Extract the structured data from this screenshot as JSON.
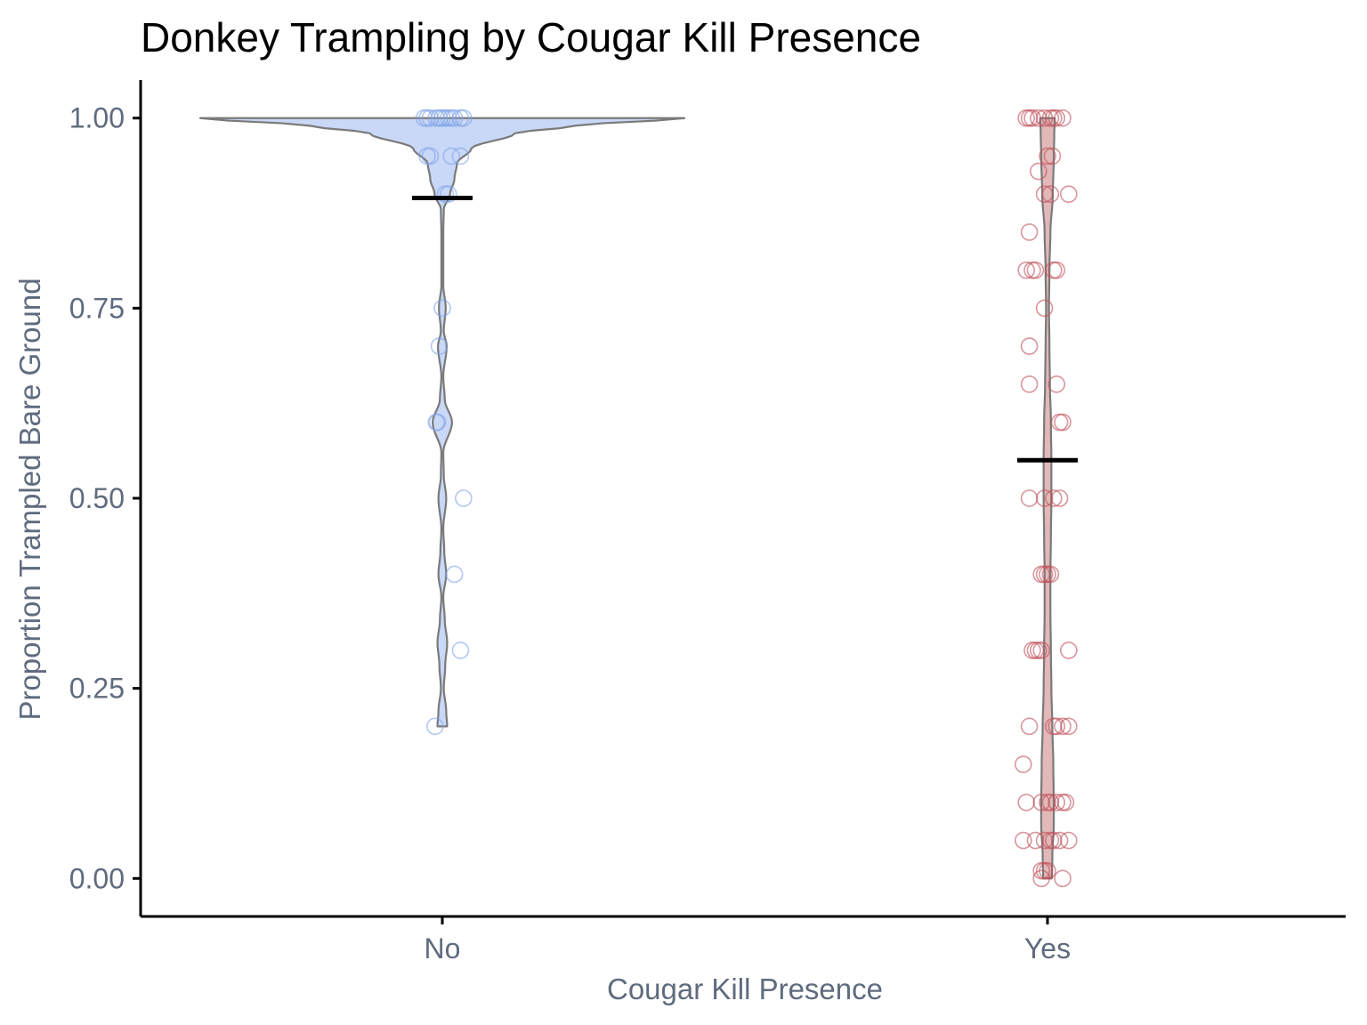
{
  "chart_data": {
    "type": "violin",
    "title": "Donkey Trampling by Cougar Kill Presence",
    "xlabel": "Cougar Kill Presence",
    "ylabel": "Proportion Trampled Bare Ground",
    "ylim": [
      -0.05,
      1.05
    ],
    "y_ticks": [
      0.0,
      0.25,
      0.5,
      0.75,
      1.0
    ],
    "y_tick_labels": [
      "0.00",
      "0.25",
      "0.50",
      "0.75",
      "1.00"
    ],
    "categories": [
      "No",
      "Yes"
    ],
    "grid": false,
    "legend": "none",
    "groups": [
      {
        "category": "No",
        "fill": "#cad8f7",
        "point_color": "#7fa3ea",
        "violin_color": "#7a7a7a",
        "mean": 0.895,
        "violin_range": [
          0.2,
          1.0
        ],
        "violin_halfwidth_fraction": [
          [
            0.2,
            0.02
          ],
          [
            0.22,
            0.016
          ],
          [
            0.25,
            0.006
          ],
          [
            0.28,
            0.012
          ],
          [
            0.31,
            0.02
          ],
          [
            0.34,
            0.01
          ],
          [
            0.37,
            0.004
          ],
          [
            0.4,
            0.016
          ],
          [
            0.43,
            0.008
          ],
          [
            0.46,
            0.004
          ],
          [
            0.5,
            0.016
          ],
          [
            0.53,
            0.006
          ],
          [
            0.56,
            0.004
          ],
          [
            0.6,
            0.04
          ],
          [
            0.63,
            0.01
          ],
          [
            0.66,
            0.004
          ],
          [
            0.7,
            0.018
          ],
          [
            0.72,
            0.006
          ],
          [
            0.75,
            0.014
          ],
          [
            0.78,
            0.004
          ],
          [
            0.8,
            0.004
          ],
          [
            0.85,
            0.004
          ],
          [
            0.88,
            0.006
          ],
          [
            0.9,
            0.032
          ],
          [
            0.92,
            0.05
          ],
          [
            0.94,
            0.06
          ],
          [
            0.96,
            0.12
          ],
          [
            0.98,
            0.3
          ],
          [
            0.99,
            0.55
          ],
          [
            1.0,
            1.0
          ]
        ],
        "points": [
          [
            -0.03,
            1.0
          ],
          [
            -0.02,
            1.0
          ],
          [
            -0.01,
            1.0
          ],
          [
            0.0,
            1.0
          ],
          [
            0.01,
            1.0
          ],
          [
            0.02,
            1.0
          ],
          [
            0.03,
            1.0
          ],
          [
            -0.025,
            1.0
          ],
          [
            0.015,
            1.0
          ],
          [
            0.035,
            1.0
          ],
          [
            0.005,
            1.0
          ],
          [
            -0.005,
            1.0
          ],
          [
            -0.025,
            0.95
          ],
          [
            0.015,
            0.95
          ],
          [
            0.03,
            0.95
          ],
          [
            -0.02,
            0.95
          ],
          [
            0.005,
            0.9
          ],
          [
            0.01,
            0.9
          ],
          [
            0.0,
            0.75
          ],
          [
            -0.005,
            0.7
          ],
          [
            -0.01,
            0.6
          ],
          [
            -0.008,
            0.6
          ],
          [
            0.035,
            0.5
          ],
          [
            0.02,
            0.4
          ],
          [
            0.03,
            0.3
          ],
          [
            -0.012,
            0.2
          ]
        ]
      },
      {
        "category": "Yes",
        "fill": "#e2b8b8",
        "point_color": "#c0505a",
        "violin_color": "#7a7a7a",
        "mean": 0.55,
        "violin_range": [
          0.0,
          1.0
        ],
        "violin_halfwidth_fraction": [
          [
            0.0,
            0.018
          ],
          [
            0.03,
            0.02
          ],
          [
            0.07,
            0.026
          ],
          [
            0.1,
            0.026
          ],
          [
            0.15,
            0.024
          ],
          [
            0.2,
            0.02
          ],
          [
            0.25,
            0.016
          ],
          [
            0.3,
            0.014
          ],
          [
            0.35,
            0.012
          ],
          [
            0.4,
            0.012
          ],
          [
            0.45,
            0.014
          ],
          [
            0.5,
            0.016
          ],
          [
            0.55,
            0.016
          ],
          [
            0.6,
            0.014
          ],
          [
            0.65,
            0.01
          ],
          [
            0.7,
            0.008
          ],
          [
            0.75,
            0.006
          ],
          [
            0.8,
            0.008
          ],
          [
            0.85,
            0.012
          ],
          [
            0.9,
            0.022
          ],
          [
            0.95,
            0.026
          ],
          [
            0.98,
            0.028
          ],
          [
            1.0,
            0.03
          ]
        ],
        "points": [
          [
            -0.035,
            1.0
          ],
          [
            -0.025,
            1.0
          ],
          [
            -0.015,
            1.0
          ],
          [
            -0.005,
            1.0
          ],
          [
            0.005,
            1.0
          ],
          [
            0.015,
            1.0
          ],
          [
            0.025,
            1.0
          ],
          [
            -0.03,
            1.0
          ],
          [
            0.01,
            1.0
          ],
          [
            -0.015,
            0.93
          ],
          [
            0.0,
            0.95
          ],
          [
            0.008,
            0.95
          ],
          [
            -0.005,
            0.9
          ],
          [
            0.005,
            0.9
          ],
          [
            0.035,
            0.9
          ],
          [
            -0.03,
            0.85
          ],
          [
            -0.035,
            0.8
          ],
          [
            -0.025,
            0.8
          ],
          [
            -0.02,
            0.8
          ],
          [
            0.01,
            0.8
          ],
          [
            0.015,
            0.8
          ],
          [
            -0.005,
            0.75
          ],
          [
            -0.03,
            0.7
          ],
          [
            -0.03,
            0.65
          ],
          [
            0.015,
            0.65
          ],
          [
            0.02,
            0.6
          ],
          [
            0.025,
            0.6
          ],
          [
            -0.03,
            0.5
          ],
          [
            -0.005,
            0.5
          ],
          [
            0.01,
            0.5
          ],
          [
            0.02,
            0.5
          ],
          [
            -0.01,
            0.4
          ],
          [
            -0.005,
            0.4
          ],
          [
            0.0,
            0.4
          ],
          [
            0.005,
            0.4
          ],
          [
            -0.02,
            0.3
          ],
          [
            -0.015,
            0.3
          ],
          [
            -0.01,
            0.3
          ],
          [
            -0.025,
            0.3
          ],
          [
            0.035,
            0.3
          ],
          [
            -0.03,
            0.2
          ],
          [
            0.01,
            0.2
          ],
          [
            0.015,
            0.2
          ],
          [
            0.025,
            0.2
          ],
          [
            0.035,
            0.2
          ],
          [
            -0.04,
            0.15
          ],
          [
            -0.035,
            0.1
          ],
          [
            -0.01,
            0.1
          ],
          [
            0.0,
            0.1
          ],
          [
            0.005,
            0.1
          ],
          [
            0.015,
            0.1
          ],
          [
            0.025,
            0.1
          ],
          [
            0.03,
            0.1
          ],
          [
            -0.04,
            0.05
          ],
          [
            -0.02,
            0.05
          ],
          [
            -0.005,
            0.05
          ],
          [
            0.005,
            0.05
          ],
          [
            0.01,
            0.05
          ],
          [
            0.02,
            0.05
          ],
          [
            0.035,
            0.05
          ],
          [
            -0.01,
            0.01
          ],
          [
            -0.005,
            0.01
          ],
          [
            0.0,
            0.01
          ],
          [
            -0.01,
            0.0
          ],
          [
            0.025,
            0.0
          ]
        ]
      }
    ]
  }
}
